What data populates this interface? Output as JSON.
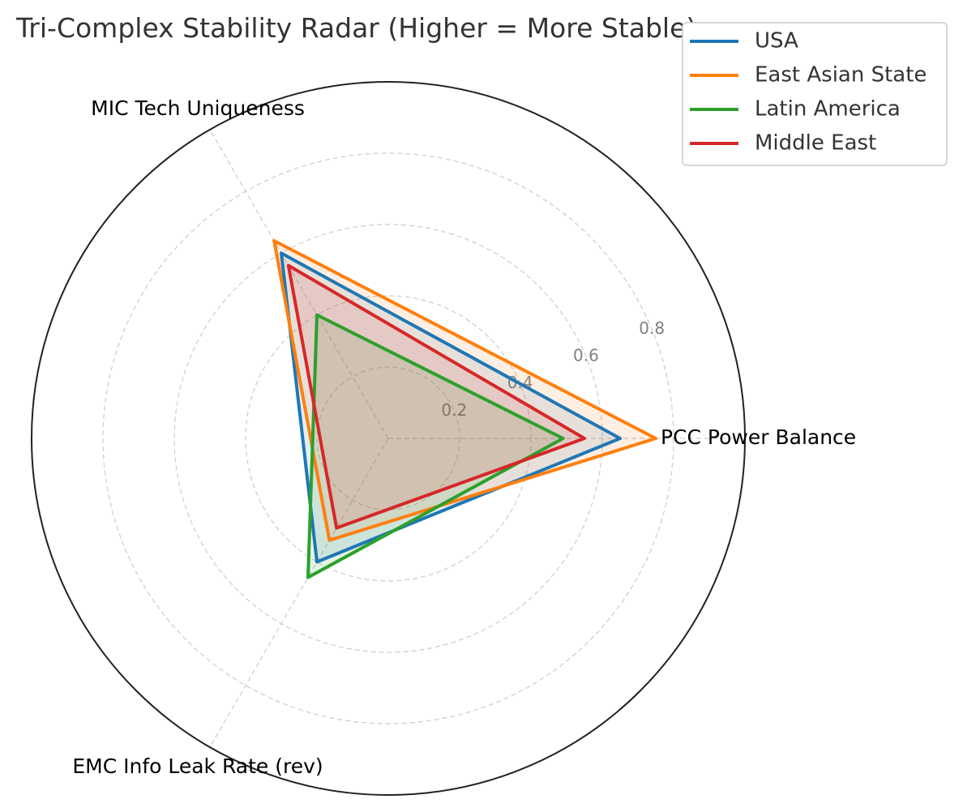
{
  "chart_data": {
    "type": "radar",
    "title": "Tri-Complex Stability Radar (Higher = More Stable)",
    "axes": [
      "PCC Power Balance",
      "MIC Tech Uniqueness",
      "EMC Info Leak Rate (rev)"
    ],
    "rlim": [
      0,
      1
    ],
    "rticks": [
      0.2,
      0.4,
      0.6,
      0.8
    ],
    "rtick_labels": [
      "0.2",
      "0.4",
      "0.6",
      "0.8"
    ],
    "grid": true,
    "legend_position": "top-right",
    "series": [
      {
        "name": "USA",
        "values": [
          0.65,
          0.6,
          0.4
        ],
        "color": "#1f77b4"
      },
      {
        "name": "East Asian State",
        "values": [
          0.75,
          0.64,
          0.33
        ],
        "color": "#ff7f0e"
      },
      {
        "name": "Latin America",
        "values": [
          0.49,
          0.4,
          0.45
        ],
        "color": "#2ca02c"
      },
      {
        "name": "Middle East",
        "values": [
          0.55,
          0.56,
          0.29
        ],
        "color": "#d62728"
      }
    ]
  }
}
